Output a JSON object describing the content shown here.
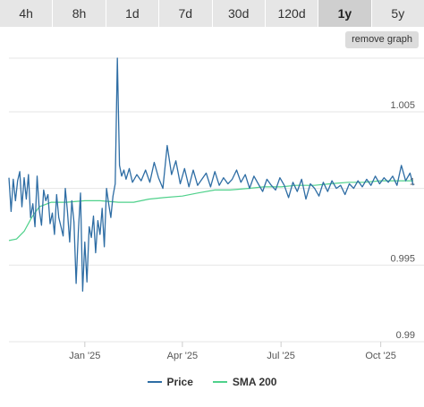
{
  "tabs": [
    {
      "label": "4h"
    },
    {
      "label": "8h"
    },
    {
      "label": "1d"
    },
    {
      "label": "7d"
    },
    {
      "label": "30d"
    },
    {
      "label": "120d"
    },
    {
      "label": "1y",
      "active": true
    },
    {
      "label": "5y"
    }
  ],
  "remove_graph_label": "remove graph",
  "colors": {
    "price": "#2e6da4",
    "sma": "#4fd18b",
    "grid": "#e6e6e6"
  },
  "chart_data": {
    "type": "line",
    "title": "",
    "xlabel": "",
    "ylabel": "",
    "x_ticks": [
      "Jan '25",
      "Apr '25",
      "Jul '25",
      "Oct '25"
    ],
    "y_ticks": [
      "1.005",
      "1",
      "0.995",
      "0.99"
    ],
    "ylim": [
      0.99,
      1.0085
    ],
    "xlim": [
      "2024-10-23",
      "2025-10-31"
    ],
    "grid": true,
    "legend": "bottom",
    "series": [
      {
        "name": "Price",
        "x": [
          "2024-10-23",
          "2024-10-25",
          "2024-10-27",
          "2024-10-29",
          "2024-10-31",
          "2024-11-02",
          "2024-11-04",
          "2024-11-06",
          "2024-11-08",
          "2024-11-10",
          "2024-11-12",
          "2024-11-14",
          "2024-11-16",
          "2024-11-18",
          "2024-11-20",
          "2024-11-22",
          "2024-11-24",
          "2024-11-26",
          "2024-11-28",
          "2024-11-30",
          "2024-12-02",
          "2024-12-04",
          "2024-12-06",
          "2024-12-08",
          "2024-12-10",
          "2024-12-12",
          "2024-12-14",
          "2024-12-16",
          "2024-12-18",
          "2024-12-20",
          "2024-12-22",
          "2024-12-24",
          "2024-12-26",
          "2024-12-28",
          "2024-12-30",
          "2025-01-01",
          "2025-01-03",
          "2025-01-05",
          "2025-01-07",
          "2025-01-09",
          "2025-01-11",
          "2025-01-13",
          "2025-01-15",
          "2025-01-17",
          "2025-01-19",
          "2025-01-21",
          "2025-01-23",
          "2025-01-25",
          "2025-01-27",
          "2025-01-29",
          "2025-01-31",
          "2025-02-02",
          "2025-02-04",
          "2025-02-06",
          "2025-02-08",
          "2025-02-11",
          "2025-02-14",
          "2025-02-18",
          "2025-02-22",
          "2025-02-26",
          "2025-03-02",
          "2025-03-06",
          "2025-03-10",
          "2025-03-14",
          "2025-03-18",
          "2025-03-22",
          "2025-03-26",
          "2025-03-30",
          "2025-04-03",
          "2025-04-07",
          "2025-04-11",
          "2025-04-15",
          "2025-04-19",
          "2025-04-23",
          "2025-04-27",
          "2025-05-01",
          "2025-05-05",
          "2025-05-09",
          "2025-05-13",
          "2025-05-17",
          "2025-05-21",
          "2025-05-25",
          "2025-05-29",
          "2025-06-02",
          "2025-06-06",
          "2025-06-10",
          "2025-06-14",
          "2025-06-18",
          "2025-06-22",
          "2025-06-26",
          "2025-06-30",
          "2025-07-04",
          "2025-07-08",
          "2025-07-12",
          "2025-07-16",
          "2025-07-20",
          "2025-07-24",
          "2025-07-28",
          "2025-08-01",
          "2025-08-05",
          "2025-08-09",
          "2025-08-13",
          "2025-08-17",
          "2025-08-21",
          "2025-08-25",
          "2025-08-29",
          "2025-09-02",
          "2025-09-06",
          "2025-09-10",
          "2025-09-14",
          "2025-09-18",
          "2025-09-22",
          "2025-09-26",
          "2025-09-30",
          "2025-10-04",
          "2025-10-08",
          "2025-10-12",
          "2025-10-16",
          "2025-10-20",
          "2025-10-24",
          "2025-10-28",
          "2025-10-31"
        ],
        "values": [
          1.0007,
          0.9985,
          1.0006,
          0.9992,
          1.0005,
          1.0011,
          0.9988,
          1.0007,
          0.9993,
          1.0009,
          0.9981,
          0.999,
          0.9975,
          1.0008,
          0.9986,
          0.9976,
          0.9999,
          0.9992,
          0.9996,
          0.9977,
          0.9984,
          0.997,
          0.9996,
          0.9981,
          0.9975,
          0.9969,
          1.0,
          0.9985,
          0.9965,
          0.9992,
          0.9978,
          0.9938,
          0.9972,
          0.9997,
          0.9933,
          0.9965,
          0.9939,
          0.9975,
          0.9968,
          0.9982,
          0.9958,
          0.9979,
          0.997,
          0.9987,
          0.9962,
          1.0,
          0.999,
          0.9981,
          0.9995,
          1.0003,
          1.0085,
          1.0015,
          1.0008,
          1.0012,
          1.0006,
          1.0013,
          1.0004,
          1.0009,
          1.0005,
          1.0012,
          1.0004,
          1.0017,
          1.0007,
          1.0,
          1.0028,
          1.0009,
          1.0018,
          1.0003,
          1.0013,
          1.0001,
          1.0012,
          1.0002,
          1.0006,
          1.001,
          1.0001,
          1.0011,
          1.0002,
          1.0007,
          1.0003,
          1.0006,
          1.0012,
          1.0004,
          1.0009,
          1.0,
          1.0008,
          1.0003,
          0.9998,
          1.0006,
          1.0002,
          0.9999,
          1.0007,
          1.0002,
          0.9994,
          1.0004,
          0.9998,
          1.0006,
          0.9993,
          1.0003,
          1.0,
          0.9995,
          1.0004,
          0.9998,
          1.0005,
          1.0,
          1.0002,
          0.9996,
          1.0003,
          1.0,
          1.0005,
          1.0001,
          1.0006,
          1.0002,
          1.0008,
          1.0003,
          1.0007,
          1.0004,
          1.0008,
          1.0002,
          1.0015,
          1.0005,
          1.001,
          1.0002
        ]
      },
      {
        "name": "SMA 200",
        "x": [
          "2024-10-23",
          "2024-10-30",
          "2024-11-06",
          "2024-11-13",
          "2024-11-20",
          "2024-12-01",
          "2024-12-15",
          "2025-01-01",
          "2025-01-15",
          "2025-02-01",
          "2025-02-15",
          "2025-03-01",
          "2025-03-15",
          "2025-04-01",
          "2025-04-15",
          "2025-05-01",
          "2025-05-15",
          "2025-06-01",
          "2025-06-15",
          "2025-07-01",
          "2025-07-15",
          "2025-08-01",
          "2025-08-15",
          "2025-09-01",
          "2025-09-15",
          "2025-10-01",
          "2025-10-15",
          "2025-10-31"
        ],
        "values": [
          0.9966,
          0.9967,
          0.9972,
          0.9981,
          0.9988,
          0.9991,
          0.9991,
          0.9992,
          0.9992,
          0.9991,
          0.9991,
          0.9993,
          0.9994,
          0.9995,
          0.9997,
          0.9999,
          0.9999,
          1.0,
          1.0001,
          1.0001,
          1.0002,
          1.0002,
          1.0003,
          1.0004,
          1.0004,
          1.0005,
          1.0005,
          1.0005
        ]
      }
    ]
  }
}
